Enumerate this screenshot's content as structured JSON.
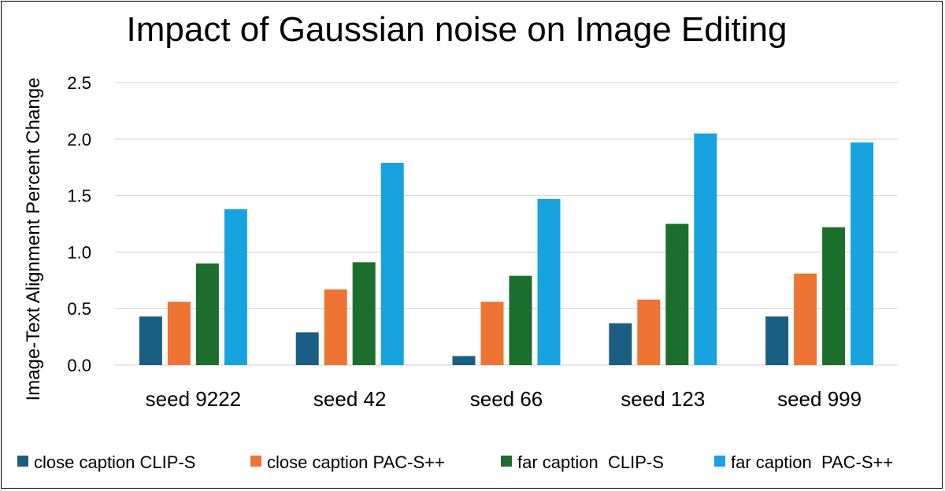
{
  "chart_data": {
    "type": "bar",
    "title": "Impact of Gaussian noise on Image Editing",
    "xlabel": "",
    "ylabel": "Image-Text Alignment Percent Change",
    "ylim": [
      0,
      2.5
    ],
    "yticks": [
      "0.0",
      "0.5",
      "1.0",
      "1.5",
      "2.0",
      "2.5"
    ],
    "ytick_values": [
      0,
      0.5,
      1.0,
      1.5,
      2.0,
      2.5
    ],
    "grid": true,
    "legend_position": "bottom",
    "categories": [
      "seed 9222",
      "seed 42",
      "seed 66",
      "seed 123",
      "seed 999"
    ],
    "series": [
      {
        "name": "close caption CLIP-S",
        "color": "#1b5e83",
        "values": [
          0.43,
          0.29,
          0.08,
          0.37,
          0.43
        ]
      },
      {
        "name": "close caption PAC-S++",
        "color": "#ee7433",
        "values": [
          0.56,
          0.67,
          0.56,
          0.58,
          0.81
        ]
      },
      {
        "name": "far caption  CLIP-S",
        "color": "#1b6e2b",
        "values": [
          0.9,
          0.91,
          0.79,
          1.25,
          1.22
        ]
      },
      {
        "name": "far caption  PAC-S++",
        "color": "#17a3e0",
        "values": [
          1.38,
          1.79,
          1.47,
          2.05,
          1.97
        ]
      }
    ]
  }
}
